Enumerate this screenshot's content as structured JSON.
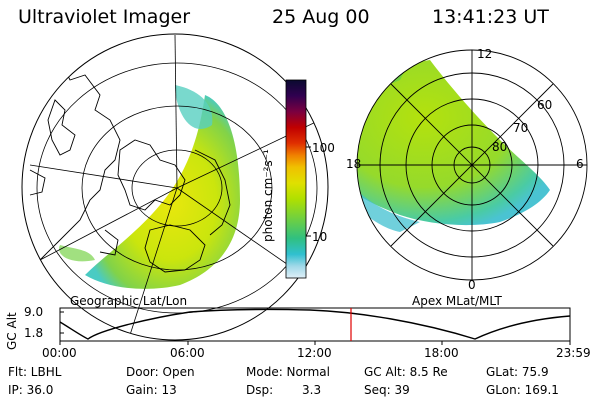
{
  "header": {
    "instrument": "Ultraviolet Imager",
    "date": "25 Aug 00",
    "time": "13:41:23 UT"
  },
  "colorbar": {
    "unit_label": "photon cm⁻²s⁻¹",
    "ticks": [
      "100",
      "10"
    ],
    "colors": [
      "#0a0a30",
      "#300050",
      "#7a0040",
      "#c00000",
      "#e03000",
      "#f08000",
      "#f0c000",
      "#e0e000",
      "#b0e000",
      "#70d040",
      "#30c080",
      "#30c0d0",
      "#a0d8e8",
      "#e0f0f8"
    ]
  },
  "left_panel": {
    "label": "Geographic Lat/Lon"
  },
  "right_panel": {
    "label": "Apex MLat/MLT",
    "mlt_labels": {
      "top": "12",
      "left": "18",
      "right": "6",
      "bottom": "0"
    },
    "lat_labels": [
      "60",
      "70",
      "80"
    ]
  },
  "altitude_plot": {
    "ylabel": "GC Alt",
    "yticks": [
      "9.0",
      "1.8"
    ],
    "xticks": [
      "00:00",
      "06:00",
      "12:00",
      "18:00",
      "23:59"
    ],
    "current_time_hours": 13.69,
    "marker_color": "#e00000"
  },
  "info": {
    "filter": "Flt: LBHL",
    "ip": "IP: 36.0",
    "door": "Door: Open",
    "gain": "Gain: 13",
    "mode": "Mode: Normal",
    "dsp_label": "Dsp:",
    "dsp_value": "3.3",
    "gc_alt": "GC Alt: 8.5 Re",
    "seq": "Seq: 39",
    "glat": "GLat: 75.9",
    "glon": "GLon: 169.1"
  }
}
